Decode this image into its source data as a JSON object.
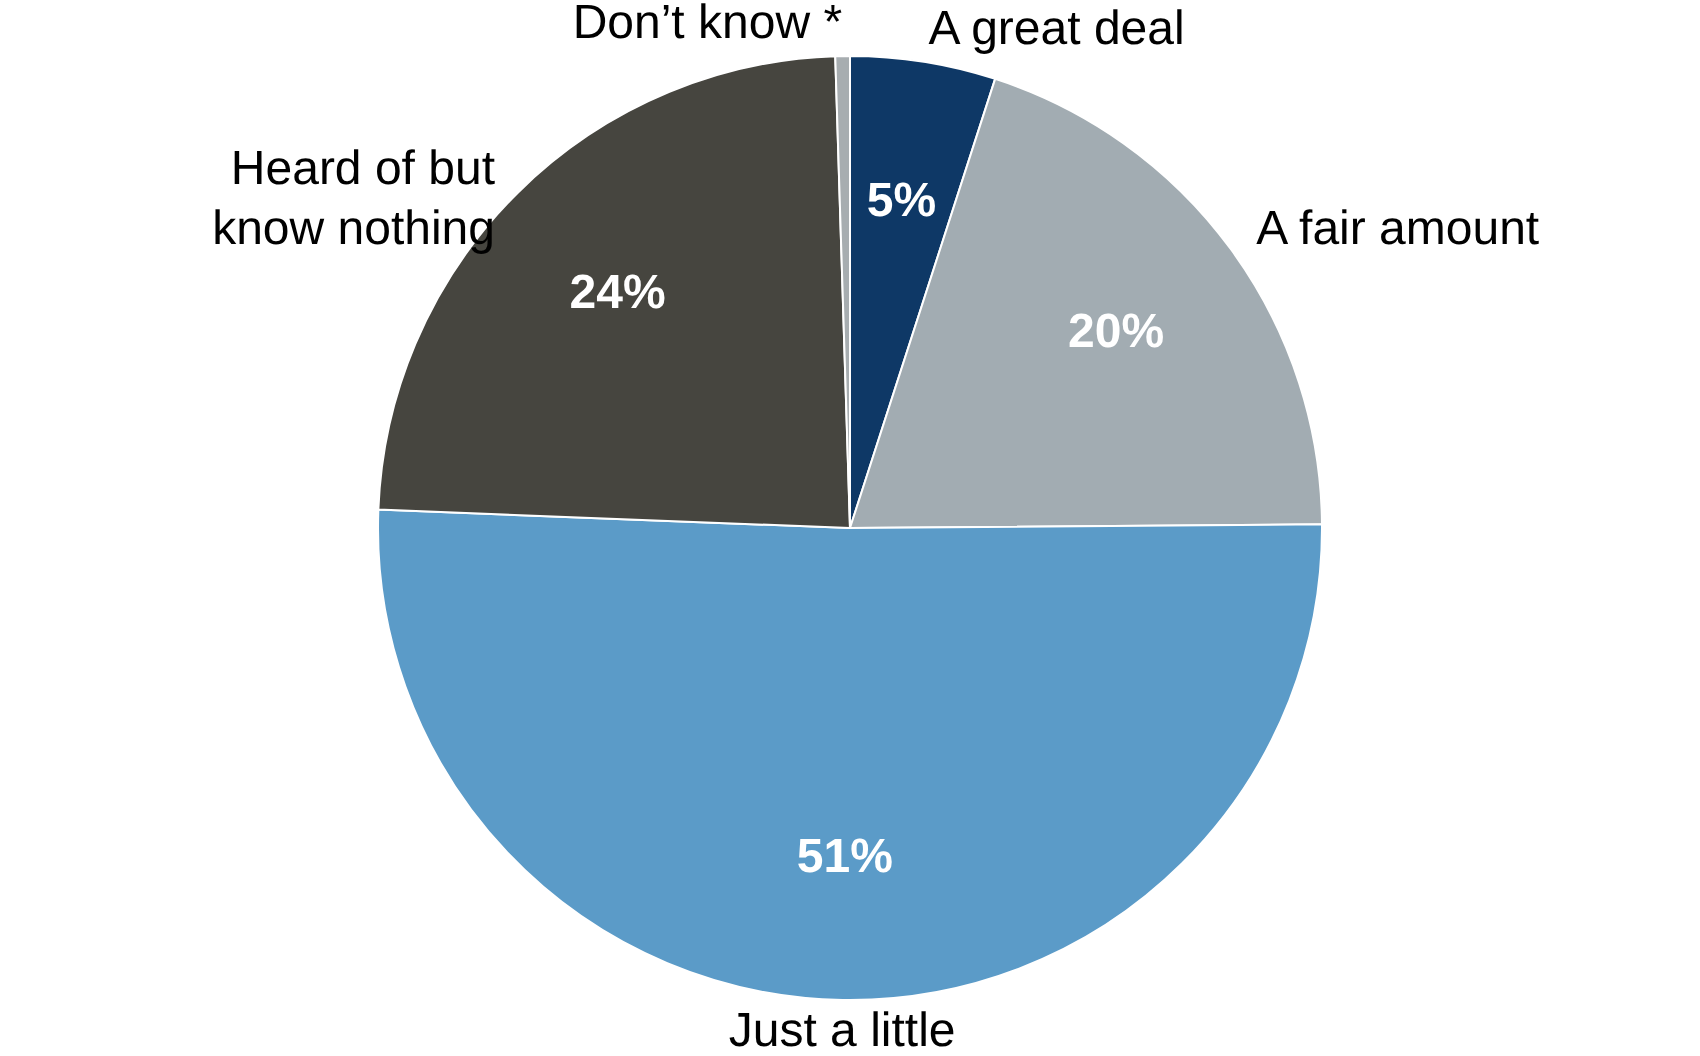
{
  "chart_data": {
    "type": "pie",
    "categories": [
      "A great deal",
      "A fair amount",
      "Just a little",
      "Heard of but know nothing",
      "Don’t know *"
    ],
    "values": [
      5,
      20,
      51,
      24,
      0.5
    ],
    "colors": [
      "#0e3866",
      "#a2acb2",
      "#5b9bc8",
      "#46453f",
      "#a7adb0"
    ],
    "value_labels": [
      "5%",
      "20%",
      "51%",
      "24%",
      null
    ]
  }
}
